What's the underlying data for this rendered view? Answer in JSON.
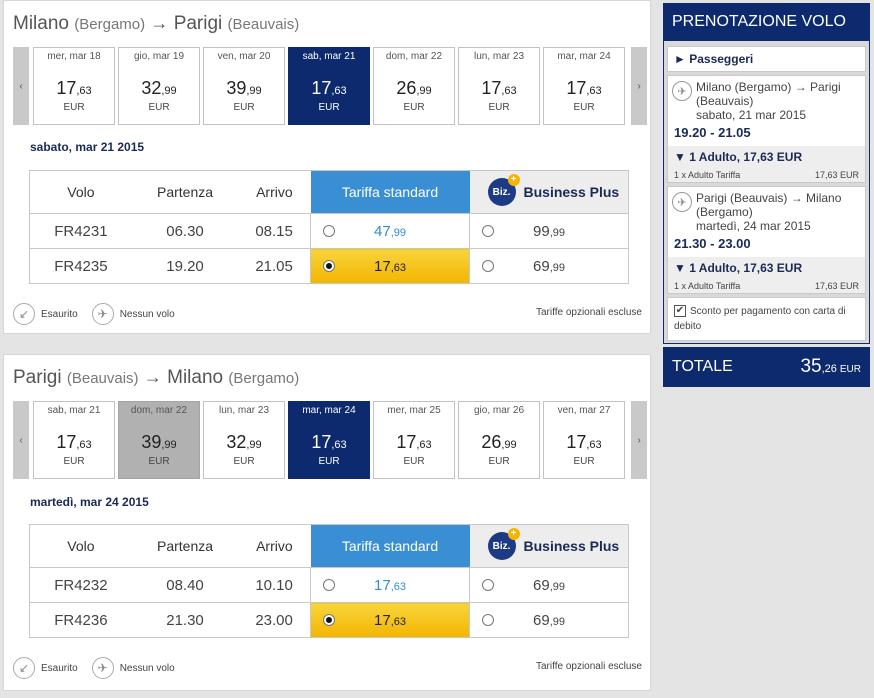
{
  "outbound": {
    "from": "Milano",
    "from_airport": "(Bergamo)",
    "arrow": "→",
    "to": "Parigi",
    "to_airport": "(Beauvais)",
    "days": [
      {
        "label": "mer, mar 18",
        "int": "17",
        "dec": ",63",
        "cur": "EUR"
      },
      {
        "label": "gio, mar 19",
        "int": "32",
        "dec": ",99",
        "cur": "EUR"
      },
      {
        "label": "ven, mar 20",
        "int": "39",
        "dec": ",99",
        "cur": "EUR"
      },
      {
        "label": "sab, mar 21",
        "int": "17",
        "dec": ",63",
        "cur": "EUR"
      },
      {
        "label": "dom, mar 22",
        "int": "26",
        "dec": ",99",
        "cur": "EUR"
      },
      {
        "label": "lun, mar 23",
        "int": "17",
        "dec": ",63",
        "cur": "EUR"
      },
      {
        "label": "mar, mar 24",
        "int": "17",
        "dec": ",63",
        "cur": "EUR"
      }
    ],
    "date_header": "sabato, mar 21 2015",
    "flights": [
      {
        "num": "FR4231",
        "dep": "06.30",
        "arr": "08.15",
        "std_int": "47",
        "std_dec": ",99",
        "biz_int": "99",
        "biz_dec": ",99"
      },
      {
        "num": "FR4235",
        "dep": "19.20",
        "arr": "21.05",
        "std_int": "17",
        "std_dec": ",63",
        "biz_int": "69",
        "biz_dec": ",99"
      }
    ]
  },
  "return": {
    "from": "Parigi",
    "from_airport": "(Beauvais)",
    "arrow": "→",
    "to": "Milano",
    "to_airport": "(Bergamo)",
    "days": [
      {
        "label": "sab, mar 21",
        "int": "17",
        "dec": ",63",
        "cur": "EUR"
      },
      {
        "label": "dom, mar 22",
        "int": "39",
        "dec": ",99",
        "cur": "EUR"
      },
      {
        "label": "lun, mar 23",
        "int": "32",
        "dec": ",99",
        "cur": "EUR"
      },
      {
        "label": "mar, mar 24",
        "int": "17",
        "dec": ",63",
        "cur": "EUR"
      },
      {
        "label": "mer, mar 25",
        "int": "17",
        "dec": ",63",
        "cur": "EUR"
      },
      {
        "label": "gio, mar 26",
        "int": "26",
        "dec": ",99",
        "cur": "EUR"
      },
      {
        "label": "ven, mar 27",
        "int": "17",
        "dec": ",63",
        "cur": "EUR"
      }
    ],
    "date_header": "martedì, mar 24 2015",
    "flights": [
      {
        "num": "FR4232",
        "dep": "08.40",
        "arr": "10.10",
        "std_int": "17",
        "std_dec": ",63",
        "biz_int": "69",
        "biz_dec": ",99"
      },
      {
        "num": "FR4236",
        "dep": "21.30",
        "arr": "23.00",
        "std_int": "17",
        "std_dec": ",63",
        "biz_int": "69",
        "biz_dec": ",99"
      }
    ]
  },
  "table_headers": {
    "flight": "Volo",
    "departure": "Partenza",
    "arrival": "Arrivo",
    "standard": "Tariffa standard",
    "biz_logo": "Biz.",
    "business": "Business Plus"
  },
  "nav": {
    "prev": "‹",
    "next": "›"
  },
  "legend": {
    "sold_out": "Esaurito",
    "no_flight": "Nessun volo",
    "optional_fees": "Tariffe opzionali escluse"
  },
  "sidebar": {
    "title": "PRENOTAZIONE VOLO",
    "passengers": "► Passeggeri",
    "seg1_route": "Milano (Bergamo) → Parigi (Beauvais)",
    "seg1_date": "sabato, 21 mar 2015",
    "seg1_time": "19.20 - 21.05",
    "seg1_adult": "▼ 1 Adulto, 17,63 EUR",
    "seg1_fare_label": "1 x Adulto Tariffa",
    "seg1_fare_value": "17,63 EUR",
    "seg2_route": "Parigi (Beauvais) → Milano (Bergamo)",
    "seg2_date": "martedì, 24 mar 2015",
    "seg2_time": "21.30 - 23.00",
    "seg2_adult": "▼ 1 Adulto, 17,63 EUR",
    "seg2_fare_label": "1 x Adulto Tariffa",
    "seg2_fare_value": "17,63 EUR",
    "discount_check": "✔",
    "discount": "Sconto per pagamento con carta di debito",
    "total_label": "TOTALE",
    "total_int": "35",
    "total_dec": ",26",
    "total_cur": "EUR"
  },
  "icons": {
    "plane": "✈",
    "sold_out": "↙",
    "no_flight": "✈"
  }
}
